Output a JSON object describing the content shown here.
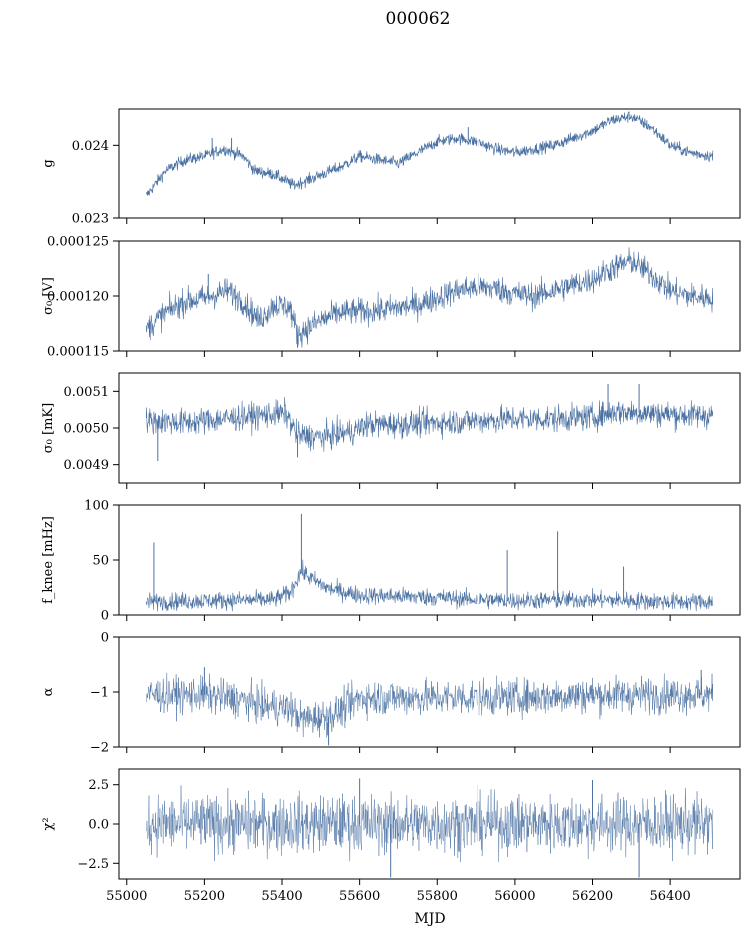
{
  "chart_data": {
    "type": "line",
    "title": "000062",
    "xlabel": "MJD",
    "xlim": [
      54980,
      56580
    ],
    "x_ticks": [
      "55000",
      "55200",
      "55400",
      "55600",
      "55800",
      "56000",
      "56200",
      "56400"
    ],
    "x_range_data": [
      55050,
      56510
    ],
    "series_color": "#4c72a3",
    "panels": [
      {
        "ylabel": "g",
        "ylim": [
          0.023,
          0.0245
        ],
        "yticks": [
          {
            "v": 0.023,
            "label": "0.023"
          },
          {
            "v": 0.024,
            "label": "0.024"
          }
        ],
        "trend": [
          [
            55050,
            0.0233
          ],
          [
            55100,
            0.02365
          ],
          [
            55150,
            0.0238
          ],
          [
            55200,
            0.02385
          ],
          [
            55250,
            0.02395
          ],
          [
            55300,
            0.02385
          ],
          [
            55330,
            0.02365
          ],
          [
            55380,
            0.0236
          ],
          [
            55430,
            0.02345
          ],
          [
            55480,
            0.02355
          ],
          [
            55550,
            0.0237
          ],
          [
            55600,
            0.02385
          ],
          [
            55650,
            0.0238
          ],
          [
            55700,
            0.02375
          ],
          [
            55750,
            0.0239
          ],
          [
            55800,
            0.02405
          ],
          [
            55850,
            0.0241
          ],
          [
            55900,
            0.02405
          ],
          [
            55950,
            0.02395
          ],
          [
            56000,
            0.0239
          ],
          [
            56050,
            0.02395
          ],
          [
            56100,
            0.024
          ],
          [
            56150,
            0.0241
          ],
          [
            56200,
            0.0242
          ],
          [
            56250,
            0.02435
          ],
          [
            56300,
            0.0244
          ],
          [
            56350,
            0.02425
          ],
          [
            56400,
            0.024
          ],
          [
            56450,
            0.0239
          ],
          [
            56510,
            0.02385
          ]
        ],
        "noise": 4e-05,
        "spikes": [
          [
            55220,
            0.0241
          ],
          [
            55270,
            0.0241
          ],
          [
            55880,
            0.02425
          ]
        ],
        "stroke": 0.7
      },
      {
        "ylabel": "σ₀ [V]",
        "ylim": [
          0.000115,
          0.000125
        ],
        "yticks": [
          {
            "v": 0.000115,
            "label": "0.000115"
          },
          {
            "v": 0.00012,
            "label": "0.000120"
          },
          {
            "v": 0.000125,
            "label": "0.000125"
          }
        ],
        "trend": [
          [
            55050,
            0.000117
          ],
          [
            55100,
            0.0001185
          ],
          [
            55150,
            0.0001195
          ],
          [
            55200,
            0.0001198
          ],
          [
            55260,
            0.0001205
          ],
          [
            55300,
            0.0001195
          ],
          [
            55340,
            0.0001178
          ],
          [
            55380,
            0.0001192
          ],
          [
            55420,
            0.000119
          ],
          [
            55440,
            0.0001165
          ],
          [
            55500,
            0.0001178
          ],
          [
            55550,
            0.0001185
          ],
          [
            55650,
            0.0001187
          ],
          [
            55750,
            0.0001192
          ],
          [
            55850,
            0.0001205
          ],
          [
            55900,
            0.0001208
          ],
          [
            55950,
            0.0001207
          ],
          [
            56000,
            0.0001202
          ],
          [
            56050,
            0.00012
          ],
          [
            56100,
            0.0001205
          ],
          [
            56200,
            0.0001215
          ],
          [
            56250,
            0.0001225
          ],
          [
            56300,
            0.0001232
          ],
          [
            56350,
            0.000122
          ],
          [
            56400,
            0.0001205
          ],
          [
            56450,
            0.00012
          ],
          [
            56510,
            0.0001198
          ]
        ],
        "noise": 6e-07,
        "spikes": [
          [
            55210,
            0.000122
          ],
          [
            55440,
            0.0001153
          ]
        ],
        "stroke": 0.6
      },
      {
        "ylabel": "σ₀ [mK]",
        "ylim": [
          0.00485,
          0.00515
        ],
        "yticks": [
          {
            "v": 0.0049,
            "label": "0.0049"
          },
          {
            "v": 0.005,
            "label": "0.0050"
          },
          {
            "v": 0.0051,
            "label": "0.0051"
          }
        ],
        "trend": [
          [
            55050,
            0.00502
          ],
          [
            55150,
            0.005015
          ],
          [
            55250,
            0.005025
          ],
          [
            55350,
            0.005035
          ],
          [
            55410,
            0.00504
          ],
          [
            55440,
            0.00498
          ],
          [
            55500,
            0.004975
          ],
          [
            55580,
            0.00499
          ],
          [
            55620,
            0.00501
          ],
          [
            55700,
            0.00501
          ],
          [
            55800,
            0.005015
          ],
          [
            55900,
            0.00502
          ],
          [
            56000,
            0.005025
          ],
          [
            56100,
            0.005025
          ],
          [
            56200,
            0.00503
          ],
          [
            56260,
            0.005045
          ],
          [
            56350,
            0.00504
          ],
          [
            56450,
            0.005035
          ],
          [
            56510,
            0.005035
          ]
        ],
        "noise": 1.8e-05,
        "spikes": [
          [
            55080,
            0.00491
          ],
          [
            55440,
            0.00492
          ],
          [
            56240,
            0.00512
          ],
          [
            56320,
            0.00512
          ]
        ],
        "stroke": 0.6
      },
      {
        "ylabel": "f_knee [mHz]",
        "ylim": [
          0,
          100
        ],
        "yticks": [
          {
            "v": 0,
            "label": "0"
          },
          {
            "v": 50,
            "label": "50"
          },
          {
            "v": 100,
            "label": "100"
          }
        ],
        "trend": [
          [
            55050,
            12
          ],
          [
            55200,
            13
          ],
          [
            55380,
            14
          ],
          [
            55420,
            20
          ],
          [
            55450,
            40
          ],
          [
            55480,
            32
          ],
          [
            55520,
            24
          ],
          [
            55600,
            18
          ],
          [
            55700,
            17
          ],
          [
            55800,
            16
          ],
          [
            55900,
            14
          ],
          [
            56000,
            13
          ],
          [
            56200,
            14
          ],
          [
            56400,
            12
          ],
          [
            56510,
            12
          ]
        ],
        "noise": 4,
        "floor": 3,
        "spikes": [
          [
            55070,
            66
          ],
          [
            55450,
            92
          ],
          [
            55980,
            59
          ],
          [
            56110,
            76
          ],
          [
            56280,
            44
          ]
        ],
        "stroke": 0.6
      },
      {
        "ylabel": "α",
        "ylim": [
          -2,
          0
        ],
        "yticks": [
          {
            "v": -2,
            "label": "−2"
          },
          {
            "v": -1,
            "label": "−1"
          },
          {
            "v": 0,
            "label": "0"
          }
        ],
        "trend": [
          [
            55050,
            -1.05
          ],
          [
            55200,
            -1.05
          ],
          [
            55300,
            -1.15
          ],
          [
            55350,
            -1.25
          ],
          [
            55420,
            -1.3
          ],
          [
            55450,
            -1.5
          ],
          [
            55520,
            -1.45
          ],
          [
            55560,
            -1.3
          ],
          [
            55600,
            -1.1
          ],
          [
            55700,
            -1.1
          ],
          [
            55800,
            -1.1
          ],
          [
            55900,
            -1.1
          ],
          [
            56000,
            -1.1
          ],
          [
            56200,
            -1.05
          ],
          [
            56400,
            -1.05
          ],
          [
            56510,
            -1.05
          ]
        ],
        "noise": 0.16,
        "spikes": [
          [
            55520,
            -1.97
          ],
          [
            55200,
            -0.55
          ],
          [
            56480,
            -0.6
          ]
        ],
        "stroke": 0.5
      },
      {
        "ylabel": "χ²",
        "ylim": [
          -3.5,
          3.5
        ],
        "yticks": [
          {
            "v": -2.5,
            "label": "−2.5"
          },
          {
            "v": 0,
            "label": "0.0"
          },
          {
            "v": 2.5,
            "label": "2.5"
          }
        ],
        "trend": [
          [
            55050,
            0
          ],
          [
            56510,
            0
          ]
        ],
        "noise": 0.9,
        "spikes": [
          [
            55600,
            2.9
          ],
          [
            55680,
            -3.4
          ],
          [
            56200,
            2.8
          ],
          [
            56320,
            -3.4
          ]
        ],
        "stroke": 0.45
      }
    ]
  }
}
